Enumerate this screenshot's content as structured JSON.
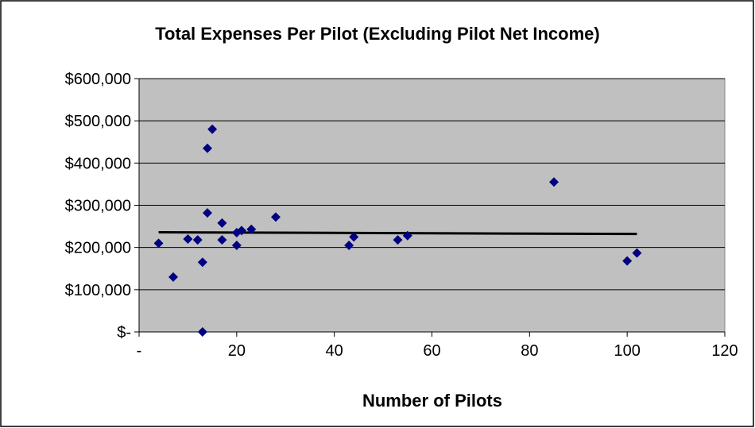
{
  "chart_data": {
    "type": "scatter",
    "title": "Total Expenses Per Pilot (Excluding Pilot Net Income)",
    "xlabel": "Number of Pilots",
    "ylabel": "",
    "xlim": [
      0,
      120
    ],
    "ylim": [
      0,
      600000
    ],
    "x_ticks": [
      0,
      20,
      40,
      60,
      80,
      100,
      120
    ],
    "x_tick_labels": [
      "-",
      "20",
      "40",
      "60",
      "80",
      "100",
      "120"
    ],
    "y_ticks": [
      0,
      100000,
      200000,
      300000,
      400000,
      500000,
      600000
    ],
    "y_tick_labels": [
      "$-",
      "$100,000",
      "$200,000",
      "$300,000",
      "$400,000",
      "$500,000",
      "$600,000"
    ],
    "grid": "horizontal",
    "legend": "none",
    "series": [
      {
        "color": "#000080",
        "marker": "diamond",
        "points": [
          [
            4,
            210000
          ],
          [
            7,
            130000
          ],
          [
            10,
            220000
          ],
          [
            12,
            218000
          ],
          [
            13,
            165000
          ],
          [
            13,
            0
          ],
          [
            14,
            435000
          ],
          [
            14,
            282000
          ],
          [
            15,
            480000
          ],
          [
            17,
            258000
          ],
          [
            17,
            218000
          ],
          [
            20,
            205000
          ],
          [
            20,
            235000
          ],
          [
            21,
            240000
          ],
          [
            23,
            243000
          ],
          [
            28,
            272000
          ],
          [
            43,
            205000
          ],
          [
            44,
            225000
          ],
          [
            53,
            218000
          ],
          [
            55,
            228000
          ],
          [
            85,
            355000
          ],
          [
            100,
            168000
          ],
          [
            102,
            187000
          ]
        ]
      }
    ],
    "trendline": {
      "color": "#000000",
      "points": [
        [
          4,
          236000
        ],
        [
          102,
          232000
        ]
      ]
    },
    "colors": {
      "plot_background": "#c0c0c0",
      "gridline": "#000000",
      "marker": "#000080",
      "trendline": "#000000"
    }
  }
}
